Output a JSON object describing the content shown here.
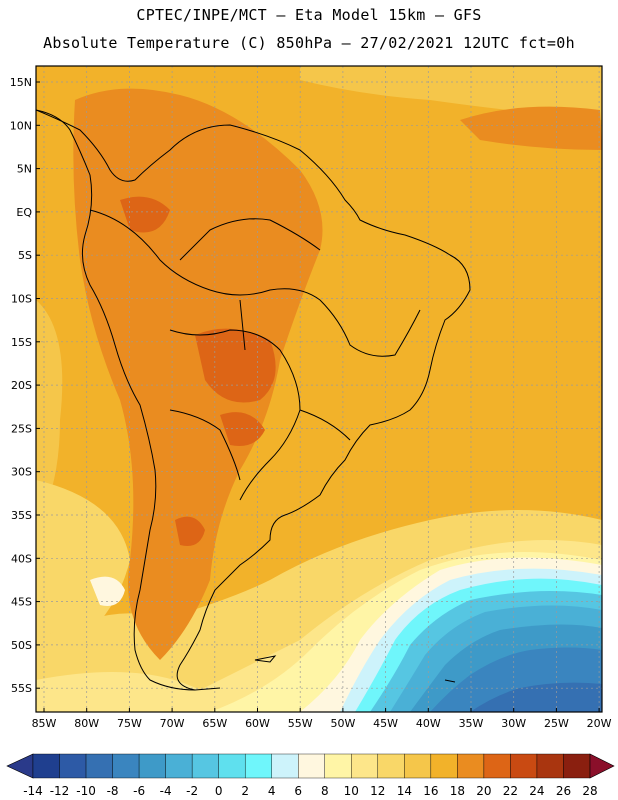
{
  "header": {
    "line1": "CPTEC/INPE/MCT –  Eta Model 15km – GFS",
    "line2": "Absolute Temperature (C) 850hPa – 27/02/2021 12UTC fct=0h"
  },
  "map": {
    "lat_labels": [
      "15N",
      "10N",
      "5N",
      "EQ",
      "5S",
      "10S",
      "15S",
      "20S",
      "25S",
      "30S",
      "35S",
      "40S",
      "45S",
      "50S",
      "55S"
    ],
    "lon_labels": [
      "85W",
      "80W",
      "75W",
      "70W",
      "65W",
      "60W",
      "55W",
      "50W",
      "45W",
      "40W",
      "35W",
      "30W",
      "25W",
      "20W"
    ]
  },
  "colorbar": {
    "labels": [
      "-14",
      "-12",
      "-10",
      "-8",
      "-6",
      "-4",
      "-2",
      "0",
      "2",
      "4",
      "6",
      "8",
      "10",
      "12",
      "14",
      "16",
      "18",
      "20",
      "22",
      "24",
      "26",
      "28"
    ],
    "colors": [
      "#1f3f8f",
      "#2d5aa6",
      "#3570b2",
      "#3a85bf",
      "#3e9ac8",
      "#4ab0d6",
      "#56c6e2",
      "#5fe0ee",
      "#6ff6fb",
      "#cdf3fb",
      "#fff7df",
      "#fff5a6",
      "#fde68a",
      "#f9d768",
      "#f5c64a",
      "#f2b22a",
      "#ea8c20",
      "#dd6516",
      "#c94a12",
      "#a9350f",
      "#8a1f0f"
    ],
    "low_color": "#2a3a8a",
    "high_color": "#8a0f2a"
  }
}
